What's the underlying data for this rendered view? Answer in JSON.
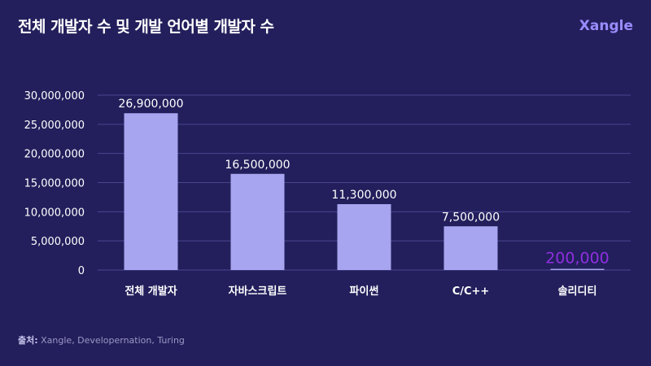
{
  "title": "전체 개발자 수 및 개발 언어별 개발자 수",
  "brand": "Xangle",
  "source_label": "출처:",
  "source_text": " Xangle, Developernation, Turing",
  "colors": {
    "background": "#231f5c",
    "bar": "#a8a5f0",
    "highlight_label": "#8f2fe0",
    "grid": "#4a4690"
  },
  "chart_data": {
    "type": "bar",
    "title": "전체 개발자 수 및 개발 언어별 개발자 수",
    "categories": [
      "전체 개발자",
      "자바스크립트",
      "파이썬",
      "C/C++",
      "솔리디티"
    ],
    "values": [
      26900000,
      16500000,
      11300000,
      7500000,
      200000
    ],
    "value_labels": [
      "26,900,000",
      "16,500,000",
      "11,300,000",
      "7,500,000",
      "200,000"
    ],
    "highlight_index": 4,
    "yticks": [
      0,
      5000000,
      10000000,
      15000000,
      20000000,
      25000000,
      30000000
    ],
    "ytick_labels": [
      "0",
      "5,000,000",
      "10,000,000",
      "15,000,000",
      "20,000,000",
      "25,000,000",
      "30,000,000"
    ],
    "ylim": [
      0,
      30000000
    ],
    "xlabel": "",
    "ylabel": "",
    "grid": true
  }
}
